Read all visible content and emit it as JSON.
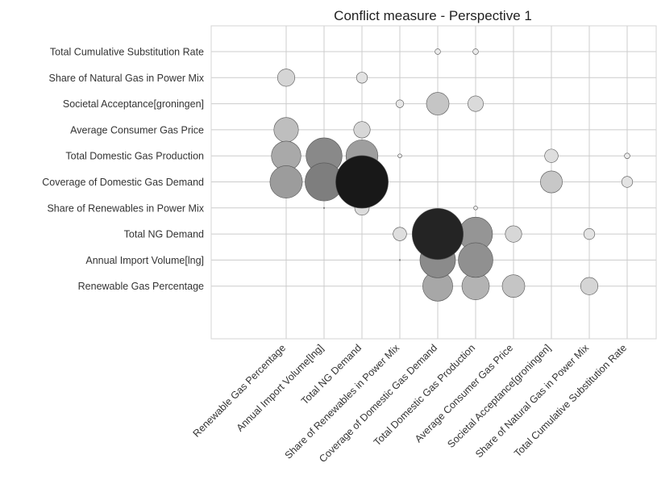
{
  "chart_data": {
    "type": "scatter",
    "subtype": "bubble",
    "title": "Conflict measure - Perspective 1",
    "xlabel": "",
    "ylabel": "",
    "grid": true,
    "legend": "none",
    "x_categories": [
      "Renewable Gas Percentage",
      "Annual Import Volume[lng]",
      "Total NG Demand",
      "Share of Renewables in Power Mix",
      "Coverage of Domestic Gas Demand",
      "Total Domestic Gas Production",
      "Average Consumer Gas Price",
      "Societal Acceptance[groningen]",
      "Share of Natural Gas in Power Mix",
      "Total Cumulative Substitution Rate"
    ],
    "y_categories": [
      "Total Cumulative Substitution Rate",
      "Share of Natural Gas in Power Mix",
      "Societal Acceptance[groningen]",
      "Average Consumer Gas Price",
      "Total Domestic Gas Production",
      "Coverage of Domestic Gas Demand",
      "Share of Renewables in Power Mix",
      "Total NG Demand",
      "Annual Import Volume[lng]",
      "Renewable Gas Percentage"
    ],
    "size_scale_max": 1.0,
    "points": [
      {
        "x": "Coverage of Domestic Gas Demand",
        "y": "Total Cumulative Substitution Rate",
        "value": 0.01
      },
      {
        "x": "Total Domestic Gas Production",
        "y": "Total Cumulative Substitution Rate",
        "value": 0.01
      },
      {
        "x": "Renewable Gas Percentage",
        "y": "Share of Natural Gas in Power Mix",
        "value": 0.1
      },
      {
        "x": "Total NG Demand",
        "y": "Share of Natural Gas in Power Mix",
        "value": 0.04
      },
      {
        "x": "Share of Renewables in Power Mix",
        "y": "Societal Acceptance[groningen]",
        "value": 0.02
      },
      {
        "x": "Coverage of Domestic Gas Demand",
        "y": "Societal Acceptance[groningen]",
        "value": 0.17
      },
      {
        "x": "Total Domestic Gas Production",
        "y": "Societal Acceptance[groningen]",
        "value": 0.08
      },
      {
        "x": "Renewable Gas Percentage",
        "y": "Average Consumer Gas Price",
        "value": 0.2
      },
      {
        "x": "Total NG Demand",
        "y": "Average Consumer Gas Price",
        "value": 0.09
      },
      {
        "x": "Renewable Gas Percentage",
        "y": "Total Domestic Gas Production",
        "value": 0.29
      },
      {
        "x": "Annual Import Volume[lng]",
        "y": "Total Domestic Gas Production",
        "value": 0.43
      },
      {
        "x": "Total NG Demand",
        "y": "Total Domestic Gas Production",
        "value": 0.34
      },
      {
        "x": "Share of Renewables in Power Mix",
        "y": "Total Domestic Gas Production",
        "value": 0.005
      },
      {
        "x": "Societal Acceptance[groningen]",
        "y": "Total Domestic Gas Production",
        "value": 0.06
      },
      {
        "x": "Total Cumulative Substitution Rate",
        "y": "Total Domestic Gas Production",
        "value": 0.01
      },
      {
        "x": "Renewable Gas Percentage",
        "y": "Coverage of Domestic Gas Demand",
        "value": 0.35
      },
      {
        "x": "Annual Import Volume[lng]",
        "y": "Coverage of Domestic Gas Demand",
        "value": 0.48
      },
      {
        "x": "Total NG Demand",
        "y": "Coverage of Domestic Gas Demand",
        "value": 0.92
      },
      {
        "x": "Societal Acceptance[groningen]",
        "y": "Coverage of Domestic Gas Demand",
        "value": 0.16
      },
      {
        "x": "Total Cumulative Substitution Rate",
        "y": "Coverage of Domestic Gas Demand",
        "value": 0.04
      },
      {
        "x": "Annual Import Volume[lng]",
        "y": "Share of Renewables in Power Mix",
        "value": 0.0005
      },
      {
        "x": "Total NG Demand",
        "y": "Share of Renewables in Power Mix",
        "value": 0.07
      },
      {
        "x": "Total Domestic Gas Production",
        "y": "Share of Renewables in Power Mix",
        "value": 0.005
      },
      {
        "x": "Share of Renewables in Power Mix",
        "y": "Total NG Demand",
        "value": 0.06
      },
      {
        "x": "Coverage of Domestic Gas Demand",
        "y": "Total NG Demand",
        "value": 0.87
      },
      {
        "x": "Total Domestic Gas Production",
        "y": "Total NG Demand",
        "value": 0.38
      },
      {
        "x": "Average Consumer Gas Price",
        "y": "Total NG Demand",
        "value": 0.09
      },
      {
        "x": "Share of Natural Gas in Power Mix",
        "y": "Total NG Demand",
        "value": 0.04
      },
      {
        "x": "Share of Renewables in Power Mix",
        "y": "Annual Import Volume[lng]",
        "value": 0.0005
      },
      {
        "x": "Coverage of Domestic Gas Demand",
        "y": "Annual Import Volume[lng]",
        "value": 0.42
      },
      {
        "x": "Total Domestic Gas Production",
        "y": "Annual Import Volume[lng]",
        "value": 0.4
      },
      {
        "x": "Coverage of Domestic Gas Demand",
        "y": "Renewable Gas Percentage",
        "value": 0.3
      },
      {
        "x": "Total Domestic Gas Production",
        "y": "Renewable Gas Percentage",
        "value": 0.25
      },
      {
        "x": "Average Consumer Gas Price",
        "y": "Renewable Gas Percentage",
        "value": 0.17
      },
      {
        "x": "Share of Natural Gas in Power Mix",
        "y": "Renewable Gas Percentage",
        "value": 0.1
      }
    ]
  }
}
